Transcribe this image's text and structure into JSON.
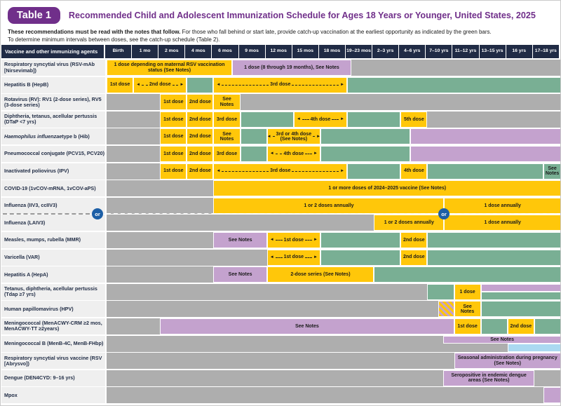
{
  "header": {
    "badge": "Table 1",
    "title": "Recommended Child and Adolescent Immunization Schedule for Ages 18 Years or Younger, United States, 2025"
  },
  "notes": {
    "line1_bold": "These recommendations must be read with the notes that follow.",
    "line1_rest": " For those who fall behind or start late, provide catch-up vaccination at the earliest opportunity as indicated by the green bars.",
    "line2": "To determine minimum intervals between doses, see the catch-up schedule (Table 2)."
  },
  "colors": {
    "recommended_yellow": "#FFC70A",
    "catchup_green": "#79AF94",
    "highrisk_purple": "#C4A2CE",
    "no_recommendation_gray": "#AEAEAE",
    "shared_decision_blue": "#ABD9F1",
    "header_navy": "#202B45",
    "brand_purple": "#702F8A",
    "or_circle_blue": "#1D5FA6"
  },
  "schedule": {
    "columns": {
      "first": "Vaccine and other immunizing agents",
      "ages": [
        "Birth",
        "1 mo",
        "2 mos",
        "4 mos",
        "6 mos",
        "9 mos",
        "12 mos",
        "15 mos",
        "18 mos",
        "19–23 mos",
        "2–3 yrs",
        "4–6 yrs",
        "7–10 yrs",
        "11–12 yrs",
        "13–15 yrs",
        "16 yrs",
        "17–18 yrs"
      ]
    },
    "or_label": "or",
    "rows": [
      {
        "label": "Respiratory syncytial virus (RSV-mAb [Nirsevimab])",
        "segments": [
          {
            "s": 0,
            "e": 4.7,
            "c": "y",
            "t": "1 dose depending on maternal RSV vaccination status (See Notes)"
          },
          {
            "s": 4.7,
            "e": 9.15,
            "c": "p",
            "t": "1 dose (8 through 19 months), See Notes"
          }
        ]
      },
      {
        "label": "Hepatitis B (HepB)",
        "segments": [
          {
            "s": 0,
            "e": 1,
            "c": "y",
            "t": "1st dose"
          },
          {
            "s": 1,
            "e": 3,
            "c": "y",
            "t": "2nd dose",
            "arrow": true
          },
          {
            "s": 3,
            "e": 4,
            "c": "g"
          },
          {
            "s": 4,
            "e": 9,
            "c": "y",
            "t": "3rd dose",
            "arrow": true
          },
          {
            "s": 9,
            "e": 17,
            "c": "g"
          }
        ]
      },
      {
        "label": "Rotavirus (RV): RV1 (2-dose series), RV5 (3-dose series)",
        "segments": [
          {
            "s": 2,
            "e": 3,
            "c": "y",
            "t": "1st dose"
          },
          {
            "s": 3,
            "e": 4,
            "c": "y",
            "t": "2nd dose"
          },
          {
            "s": 4,
            "e": 5,
            "c": "y",
            "t": "See Notes"
          }
        ]
      },
      {
        "label": "Diphtheria, tetanus, acellular pertussis (DTaP &lt;7 yrs)",
        "segments": [
          {
            "s": 2,
            "e": 3,
            "c": "y",
            "t": "1st dose"
          },
          {
            "s": 3,
            "e": 4,
            "c": "y",
            "t": "2nd dose"
          },
          {
            "s": 4,
            "e": 5,
            "c": "y",
            "t": "3rd dose"
          },
          {
            "s": 5,
            "e": 7,
            "c": "g"
          },
          {
            "s": 7,
            "e": 9,
            "c": "y",
            "t": "4th dose",
            "arrow": true
          },
          {
            "s": 9,
            "e": 11,
            "c": "g"
          },
          {
            "s": 11,
            "e": 12,
            "c": "y",
            "t": "5th dose"
          }
        ]
      },
      {
        "label": "<i>Haemophilus influenzae</i> type b (Hib)",
        "segments": [
          {
            "s": 2,
            "e": 3,
            "c": "y",
            "t": "1st dose"
          },
          {
            "s": 3,
            "e": 4,
            "c": "y",
            "t": "2nd dose"
          },
          {
            "s": 4,
            "e": 5,
            "c": "y",
            "t": "See Notes"
          },
          {
            "s": 5,
            "e": 6,
            "c": "g"
          },
          {
            "s": 6,
            "e": 8,
            "c": "y",
            "t": "3rd or 4th dose",
            "t2": "(See Notes)",
            "arrow": true
          },
          {
            "s": 8,
            "e": 11.37,
            "c": "g"
          },
          {
            "s": 11.37,
            "e": 17,
            "c": "p"
          }
        ]
      },
      {
        "label": "Pneumococcal conjugate (PCV15, PCV20)",
        "segments": [
          {
            "s": 2,
            "e": 3,
            "c": "y",
            "t": "1st dose"
          },
          {
            "s": 3,
            "e": 4,
            "c": "y",
            "t": "2nd dose"
          },
          {
            "s": 4,
            "e": 5,
            "c": "y",
            "t": "3rd dose"
          },
          {
            "s": 5,
            "e": 6,
            "c": "g"
          },
          {
            "s": 6,
            "e": 8,
            "c": "y",
            "t": "4th dose",
            "arrow": true
          },
          {
            "s": 8,
            "e": 11.37,
            "c": "g"
          },
          {
            "s": 11.37,
            "e": 17,
            "c": "p"
          }
        ]
      },
      {
        "label": "Inactivated poliovirus (IPV)",
        "segments": [
          {
            "s": 2,
            "e": 3,
            "c": "y",
            "t": "1st dose"
          },
          {
            "s": 3,
            "e": 4,
            "c": "y",
            "t": "2nd dose"
          },
          {
            "s": 4,
            "e": 9,
            "c": "y",
            "t": "3rd dose",
            "arrow": true
          },
          {
            "s": 9,
            "e": 11,
            "c": "g"
          },
          {
            "s": 11,
            "e": 12,
            "c": "y",
            "t": "4th dose"
          },
          {
            "s": 12,
            "e": 16.35,
            "c": "g"
          },
          {
            "s": 16.35,
            "e": 17,
            "c": "g",
            "t": "See Notes"
          }
        ]
      },
      {
        "label": "COVID-19 (1vCOV-mRNA, 1vCOV-aPS)",
        "segments": [
          {
            "s": 4,
            "e": 17,
            "c": "y",
            "t": "1 or more doses of 2024–2025 vaccine (See Notes)"
          }
        ]
      },
      {
        "label": "Influenza (IIV3, ccIIV3)",
        "segments": [
          {
            "s": 4,
            "e": 12.63,
            "c": "y",
            "t": "1 or 2 doses annually"
          },
          {
            "s": 12.63,
            "e": 17,
            "c": "y",
            "t": "1 dose annually"
          }
        ]
      },
      {
        "label": "Influenza (LAIV3)",
        "segments": [
          {
            "s": 10,
            "e": 12.63,
            "c": "y",
            "t": "1 or 2 doses annually"
          },
          {
            "s": 12.63,
            "e": 17,
            "c": "y",
            "t": "1 dose annually"
          }
        ]
      },
      {
        "label": "Measles, mumps, rubella (MMR)",
        "segments": [
          {
            "s": 4,
            "e": 6,
            "c": "p",
            "t": "See Notes"
          },
          {
            "s": 6,
            "e": 8,
            "c": "y",
            "t": "1st dose",
            "arrow": true
          },
          {
            "s": 8,
            "e": 11,
            "c": "g"
          },
          {
            "s": 11,
            "e": 12,
            "c": "y",
            "t": "2nd dose"
          },
          {
            "s": 12,
            "e": 17,
            "c": "g"
          }
        ]
      },
      {
        "label": "Varicella (VAR)",
        "segments": [
          {
            "s": 6,
            "e": 8,
            "c": "y",
            "t": "1st dose",
            "arrow": true
          },
          {
            "s": 8,
            "e": 11,
            "c": "g"
          },
          {
            "s": 11,
            "e": 12,
            "c": "y",
            "t": "2nd dose"
          },
          {
            "s": 12,
            "e": 17,
            "c": "g"
          }
        ]
      },
      {
        "label": "Hepatitis A (HepA)",
        "segments": [
          {
            "s": 4,
            "e": 6,
            "c": "p",
            "t": "See Notes"
          },
          {
            "s": 6,
            "e": 10,
            "c": "y",
            "t": "2-dose series (See Notes)"
          },
          {
            "s": 10,
            "e": 17,
            "c": "g"
          }
        ]
      },
      {
        "label": "Tetanus, diphtheria, acellular pertussis (Tdap ≥7 yrs)",
        "segments": [
          {
            "s": 12,
            "e": 13,
            "c": "g"
          },
          {
            "s": 13,
            "e": 14,
            "c": "y",
            "t": "1 dose"
          },
          {
            "s": 14,
            "e": 17,
            "c": "p",
            "half": "top"
          },
          {
            "s": 14,
            "e": 17,
            "c": "g",
            "half": "bot"
          }
        ]
      },
      {
        "label": "Human papillomavirus (HPV)",
        "segments": [
          {
            "s": 12.42,
            "e": 13,
            "c": "hatch"
          },
          {
            "s": 13,
            "e": 14,
            "c": "y",
            "t": "See Notes"
          },
          {
            "s": 14,
            "e": 17,
            "c": "g"
          }
        ]
      },
      {
        "label": "Meningococcal (MenACWY-CRM ≥2 mos, MenACWY-TT ≥2years)",
        "segments": [
          {
            "s": 2,
            "e": 13,
            "c": "p",
            "t": "See Notes"
          },
          {
            "s": 13,
            "e": 14,
            "c": "y",
            "t": "1st dose"
          },
          {
            "s": 14,
            "e": 15,
            "c": "g"
          },
          {
            "s": 15,
            "e": 16,
            "c": "y",
            "t": "2nd dose"
          },
          {
            "s": 16,
            "e": 17,
            "c": "g"
          }
        ]
      },
      {
        "label": "Meningococcal B (MenB-4C, MenB-FHbp)",
        "segments": [
          {
            "s": 12.6,
            "e": 17,
            "c": "p",
            "half": "top",
            "t": "See Notes"
          },
          {
            "s": 15,
            "e": 17,
            "c": "b",
            "half": "bot"
          }
        ]
      },
      {
        "label": "Respiratory syncytial virus vaccine (RSV [Abrysvo])",
        "segments": [
          {
            "s": 13,
            "e": 17,
            "c": "p",
            "t": "Seasonal administration during pregnancy (See Notes)"
          }
        ]
      },
      {
        "label": "Dengue (DEN4CYD: 9–16 yrs)",
        "segments": [
          {
            "s": 12.6,
            "e": 16,
            "c": "p",
            "t": "Seropositive in endemic dengue areas (See Notes)"
          }
        ]
      },
      {
        "label": "Mpox",
        "segments": [
          {
            "s": 16.35,
            "e": 17,
            "c": "p"
          }
        ]
      }
    ]
  }
}
